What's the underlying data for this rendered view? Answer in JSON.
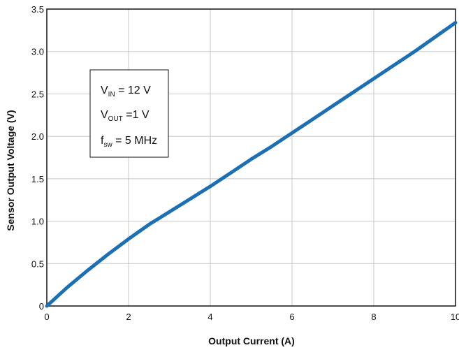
{
  "chart_data": {
    "type": "line",
    "title": "",
    "xlabel": "Output Current (A)",
    "ylabel": "Sensor Output Voltage (V)",
    "xlim": [
      0,
      10
    ],
    "ylim": [
      0,
      3.5
    ],
    "grid": true,
    "x_ticks": [
      "0",
      "2",
      "4",
      "6",
      "8",
      "10"
    ],
    "y_ticks": [
      "0",
      "0.5",
      "1.0",
      "1.5",
      "2.0",
      "2.5",
      "3.0",
      "3.5"
    ],
    "line_color": "#1a6fb5",
    "series": [
      {
        "x": [
          0,
          0.5,
          1,
          1.5,
          2,
          2.5,
          3,
          3.5,
          4,
          4.5,
          5,
          5.5,
          6,
          6.5,
          7,
          7.5,
          8,
          8.5,
          9,
          9.5,
          10
        ],
        "y": [
          0,
          0.22,
          0.42,
          0.61,
          0.79,
          0.96,
          1.11,
          1.26,
          1.41,
          1.57,
          1.73,
          1.88,
          2.04,
          2.2,
          2.36,
          2.52,
          2.68,
          2.84,
          3.0,
          3.17,
          3.34
        ]
      }
    ],
    "annotation": {
      "vin_label": "V",
      "vin_sub": "IN",
      "vin_value": " = 12 V",
      "vout_label": "V",
      "vout_sub": "OUT",
      "vout_value": " =1 V",
      "fsw_label": "f",
      "fsw_sub": "sw",
      "fsw_value": " = 5 MHz"
    }
  }
}
